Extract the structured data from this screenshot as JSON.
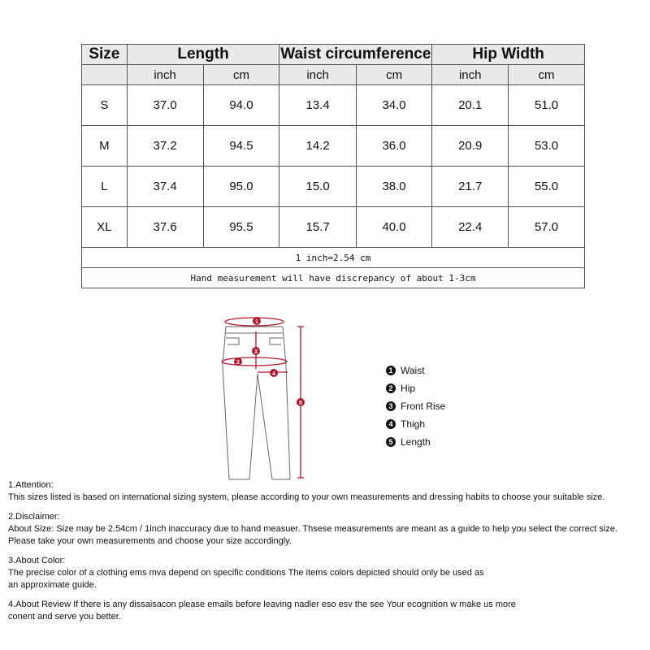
{
  "table": {
    "headers": [
      "Size",
      "Length",
      "Waist circumference",
      "Hip Width"
    ],
    "units": [
      "inch",
      "cm",
      "inch",
      "cm",
      "inch",
      "cm"
    ],
    "rows": [
      [
        "S",
        "37.0",
        "94.0",
        "13.4",
        "34.0",
        "20.1",
        "51.0"
      ],
      [
        "M",
        "37.2",
        "94.5",
        "14.2",
        "36.0",
        "20.9",
        "53.0"
      ],
      [
        "L",
        "37.4",
        "95.0",
        "15.0",
        "38.0",
        "21.7",
        "55.0"
      ],
      [
        "XL",
        "37.6",
        "95.5",
        "15.7",
        "40.0",
        "22.4",
        "57.0"
      ]
    ],
    "conversion": "1 inch=2.54 cm",
    "discrepancy": "Hand measurement will have discrepancy of about 1-3cm"
  },
  "legend": [
    {
      "num": "1",
      "label": "Waist"
    },
    {
      "num": "2",
      "label": "Hip"
    },
    {
      "num": "3",
      "label": "Front Rise"
    },
    {
      "num": "4",
      "label": "Thigh"
    },
    {
      "num": "5",
      "label": "Length"
    }
  ],
  "notes": [
    {
      "title": "1.Attention:",
      "lines": [
        "This sizes listed is based on international sizing system, please according to your own measurements and dressing habits to choose your suitable size."
      ]
    },
    {
      "title": "2.Disclaimer:",
      "lines": [
        "About Size: Size may be 2.54cm / 1inch inaccuracy due to hand measuer. Thsese measurements are meant as a guide to help you select the correct size.",
        "Please take your own measurements and choose your size accordingly."
      ]
    },
    {
      "title": "3.About Color:",
      "lines": [
        "The precise color of a clothing ems mva depend on specific conditions The items colors depicted should only be used as",
        "an approximate guide."
      ]
    },
    {
      "title": "",
      "lines": [
        "4.About Review If there is any dissaisacon please emails before leaving nadler eso esv the see Your ecognition w make us more",
        "conent and serve you better."
      ]
    }
  ],
  "colors": {
    "header_bg": "#e9e9e9",
    "measure_red": "#b0182b"
  }
}
